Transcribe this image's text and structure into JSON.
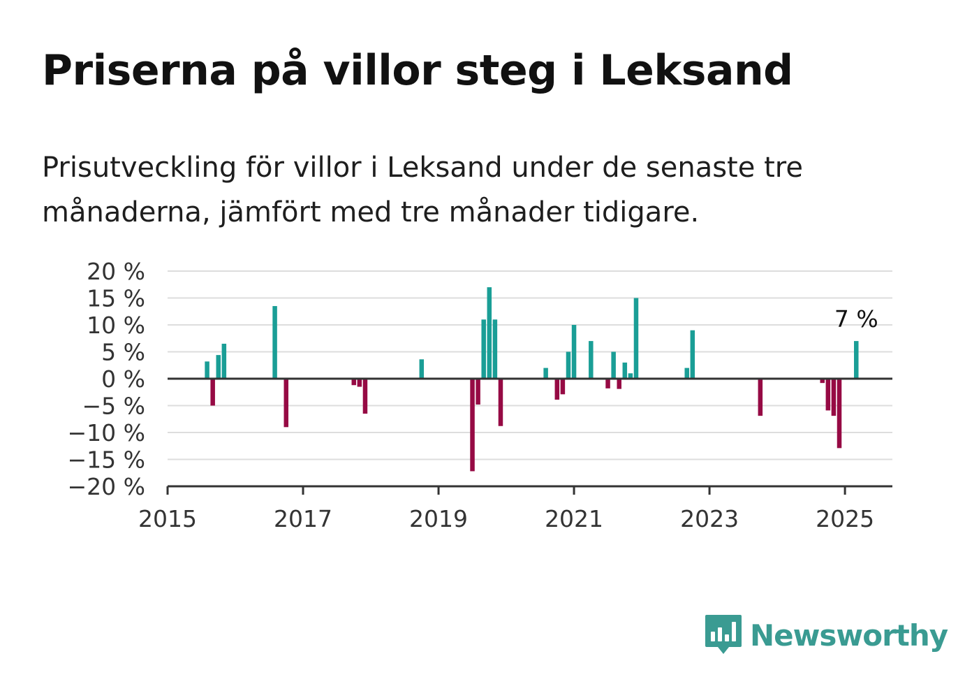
{
  "title": "Priserna på villor steg i Leksand",
  "subtitle": "Prisutveckling för villor i Leksand under de senaste tre månaderna, jämfört med tre månader tidigare.",
  "brand": {
    "name": "Newsworthy",
    "color": "#3a9b92",
    "icon": "bar-chart-speech-bubble-icon"
  },
  "chart_data": {
    "type": "bar",
    "xlabel": "",
    "ylabel": "",
    "xlim": [
      2015.0,
      2025.7
    ],
    "ylim": [
      -20,
      20
    ],
    "x_ticks": [
      2015,
      2017,
      2019,
      2021,
      2023,
      2025
    ],
    "y_ticks": [
      20,
      15,
      10,
      5,
      0,
      -5,
      -10,
      -15,
      -20
    ],
    "y_tick_labels": [
      "20 %",
      "15 %",
      "10 %",
      "5 %",
      "0 %",
      "−5 %",
      "−10 %",
      "−15 %",
      "−20 %"
    ],
    "grid": true,
    "colors": {
      "positive": "#1a9e96",
      "negative": "#960a44",
      "grid": "#dddddd",
      "axis": "#333333"
    },
    "annotation": {
      "text": "7 %",
      "x": "2025-03",
      "value": 7
    },
    "bars": [
      {
        "x": "2015-08",
        "value": 3.2
      },
      {
        "x": "2015-09",
        "value": -5
      },
      {
        "x": "2015-10",
        "value": 4.4
      },
      {
        "x": "2015-11",
        "value": 6.5
      },
      {
        "x": "2016-08",
        "value": 13.5
      },
      {
        "x": "2016-10",
        "value": -9
      },
      {
        "x": "2017-10",
        "value": -1.2
      },
      {
        "x": "2017-11",
        "value": -1.5
      },
      {
        "x": "2017-12",
        "value": -6.5
      },
      {
        "x": "2018-10",
        "value": 3.6
      },
      {
        "x": "2019-07",
        "value": -17.2
      },
      {
        "x": "2019-08",
        "value": -4.8
      },
      {
        "x": "2019-09",
        "value": 11
      },
      {
        "x": "2019-10",
        "value": 17
      },
      {
        "x": "2019-11",
        "value": 11
      },
      {
        "x": "2019-12",
        "value": -8.8
      },
      {
        "x": "2020-08",
        "value": 2
      },
      {
        "x": "2020-10",
        "value": -3.9
      },
      {
        "x": "2020-11",
        "value": -2.9
      },
      {
        "x": "2020-12",
        "value": 5
      },
      {
        "x": "2021-01",
        "value": 10
      },
      {
        "x": "2021-04",
        "value": 7
      },
      {
        "x": "2021-07",
        "value": -1.8
      },
      {
        "x": "2021-08",
        "value": 5
      },
      {
        "x": "2021-09",
        "value": -1.9
      },
      {
        "x": "2021-10",
        "value": 3
      },
      {
        "x": "2021-11",
        "value": 1
      },
      {
        "x": "2021-12",
        "value": 15
      },
      {
        "x": "2022-09",
        "value": 2
      },
      {
        "x": "2022-10",
        "value": 9
      },
      {
        "x": "2023-10",
        "value": -6.9
      },
      {
        "x": "2024-09",
        "value": -0.8
      },
      {
        "x": "2024-10",
        "value": -5.9
      },
      {
        "x": "2024-11",
        "value": -6.9
      },
      {
        "x": "2024-12",
        "value": -12.9
      },
      {
        "x": "2025-03",
        "value": 7
      }
    ]
  }
}
